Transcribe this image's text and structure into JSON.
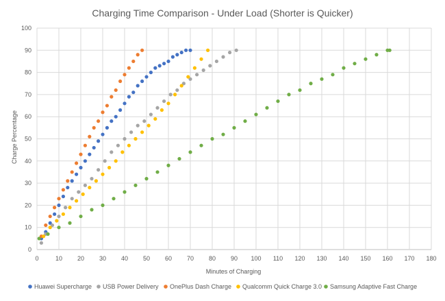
{
  "chart_data": {
    "type": "scatter",
    "title": "Charging Time Comparison - Under Load (Shorter is Quicker)",
    "xlabel": "Minutes of Charging",
    "ylabel": "Charge Percentage",
    "xlim": [
      0,
      180
    ],
    "ylim": [
      0,
      100
    ],
    "xticks": [
      0,
      10,
      20,
      30,
      40,
      50,
      60,
      70,
      80,
      90,
      100,
      110,
      120,
      130,
      140,
      150,
      160,
      170,
      180
    ],
    "yticks": [
      0,
      10,
      20,
      30,
      40,
      50,
      60,
      70,
      80,
      90,
      100
    ],
    "grid": true,
    "legend_position": "bottom",
    "series": [
      {
        "name": "Huawei Supercharge",
        "color": "#4472C4",
        "x": [
          2,
          4,
          6,
          8,
          10,
          12,
          14,
          16,
          18,
          20,
          22,
          24,
          26,
          28,
          30,
          32,
          34,
          36,
          38,
          40,
          42,
          44,
          46,
          48,
          50,
          52,
          54,
          56,
          58,
          60,
          62,
          64,
          66,
          68,
          70
        ],
        "y": [
          5,
          8,
          12,
          16,
          20,
          24,
          28,
          31,
          34,
          37,
          40,
          43,
          46,
          49,
          52,
          55,
          58,
          60,
          63,
          66,
          69,
          71,
          74,
          76,
          78,
          80,
          82,
          83,
          84,
          85,
          87,
          88,
          89,
          90,
          90
        ]
      },
      {
        "name": "USB Power Delivery",
        "color": "#A5A5A5",
        "x": [
          2,
          4,
          7,
          10,
          13,
          16,
          19,
          22,
          25,
          28,
          31,
          34,
          37,
          40,
          43,
          46,
          49,
          52,
          55,
          58,
          61,
          64,
          67,
          70,
          73,
          76,
          79,
          82,
          85,
          88,
          91
        ],
        "y": [
          3,
          7,
          11,
          15,
          19,
          23,
          26,
          29,
          32,
          36,
          40,
          44,
          47,
          50,
          53,
          56,
          58,
          61,
          64,
          67,
          70,
          72,
          75,
          77,
          79,
          81,
          83,
          85,
          87,
          89,
          90
        ]
      },
      {
        "name": "OnePlus Dash Charge",
        "color": "#ED7D31",
        "x": [
          2,
          4,
          6,
          8,
          10,
          12,
          14,
          16,
          18,
          20,
          22,
          24,
          26,
          28,
          30,
          32,
          34,
          36,
          38,
          40,
          42,
          44,
          46,
          48
        ],
        "y": [
          6,
          11,
          15,
          19,
          23,
          27,
          31,
          35,
          39,
          43,
          47,
          51,
          55,
          58,
          62,
          65,
          69,
          72,
          76,
          79,
          82,
          85,
          88,
          90
        ]
      },
      {
        "name": "Qualcomm Quick Charge 3.0",
        "color": "#FFC000",
        "x": [
          3,
          6,
          9,
          12,
          15,
          18,
          21,
          24,
          27,
          30,
          33,
          36,
          39,
          42,
          45,
          48,
          51,
          54,
          57,
          60,
          63,
          66,
          69,
          72,
          75,
          78
        ],
        "y": [
          6,
          10,
          13,
          16,
          19,
          22,
          25,
          28,
          31,
          34,
          37,
          40,
          44,
          47,
          50,
          53,
          56,
          59,
          63,
          66,
          70,
          74,
          78,
          82,
          86,
          90
        ]
      },
      {
        "name": "Samsung Adaptive Fast Charge",
        "color": "#70AD47",
        "x": [
          1,
          5,
          10,
          15,
          20,
          25,
          30,
          35,
          40,
          45,
          50,
          55,
          60,
          65,
          70,
          75,
          80,
          85,
          90,
          95,
          100,
          105,
          110,
          115,
          120,
          125,
          130,
          135,
          140,
          145,
          150,
          155,
          160,
          161
        ],
        "y": [
          5,
          7,
          10,
          12,
          15,
          18,
          20,
          23,
          26,
          29,
          32,
          35,
          38,
          41,
          44,
          47,
          50,
          52,
          55,
          58,
          61,
          64,
          67,
          70,
          72,
          75,
          77,
          79,
          82,
          84,
          86,
          88,
          90,
          90
        ]
      }
    ]
  }
}
